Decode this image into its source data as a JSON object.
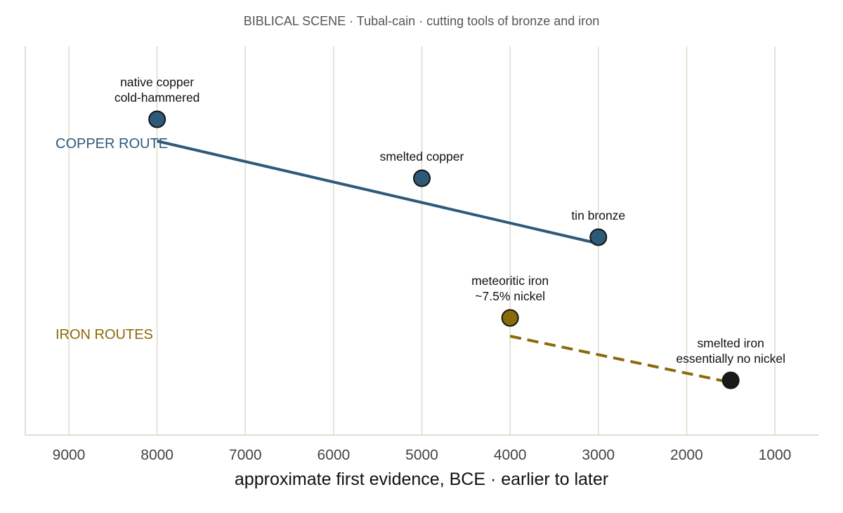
{
  "chart_data": {
    "type": "scatter",
    "title": "BIBLICAL SCENE · Tubal-cain · cutting tools of bronze and iron",
    "xlabel": "approximate first evidence, BCE · earlier to later",
    "xlim": [
      9500,
      500
    ],
    "x_reversed": true,
    "x_ticks": [
      9000,
      8000,
      7000,
      6000,
      5000,
      4000,
      3000,
      2000,
      1000
    ],
    "grid": "vertical",
    "groups": [
      {
        "name": "COPPER ROUTE",
        "color": "#2e5a7a",
        "line_style": "solid",
        "trend": {
          "from": 8000,
          "to": 3000
        },
        "points": [
          {
            "x": 8000,
            "label": [
              "native copper",
              "cold-hammered"
            ],
            "color": "#2e5a7a"
          },
          {
            "x": 5000,
            "label": [
              "smelted copper"
            ],
            "color": "#2e5a7a"
          },
          {
            "x": 3000,
            "label": [
              "tin bronze"
            ],
            "color": "#2e5a7a"
          }
        ]
      },
      {
        "name": "IRON ROUTES",
        "color": "#8a6b0a",
        "line_style": "dashed",
        "trend": {
          "from": 4000,
          "to": 1500
        },
        "points": [
          {
            "x": 4000,
            "label": [
              "meteoritic iron",
              "~7.5% nickel"
            ],
            "color": "#8a6b0a"
          },
          {
            "x": 1500,
            "label": [
              "smelted iron",
              "essentially no nickel"
            ],
            "color": "#1a1a1a"
          }
        ]
      }
    ]
  }
}
